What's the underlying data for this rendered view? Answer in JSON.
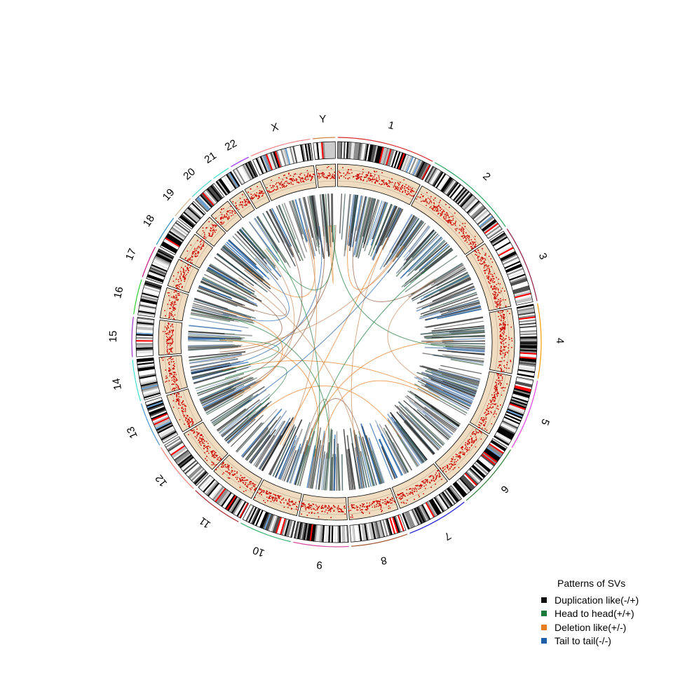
{
  "chart_data": {
    "type": "circos",
    "title": "",
    "chromosomes": [
      {
        "name": "1",
        "length": 249,
        "color": "#d62728"
      },
      {
        "name": "2",
        "length": 243,
        "color": "#2ca25f"
      },
      {
        "name": "3",
        "length": 198,
        "color": "#8c1d40"
      },
      {
        "name": "4",
        "length": 190,
        "color": "#ff9900"
      },
      {
        "name": "5",
        "length": 181,
        "color": "#e040e0"
      },
      {
        "name": "6",
        "length": 171,
        "color": "#2e7d32"
      },
      {
        "name": "7",
        "length": 159,
        "color": "#1f1fd6"
      },
      {
        "name": "8",
        "length": 145,
        "color": "#a0522d"
      },
      {
        "name": "9",
        "length": 141,
        "color": "#d94fa0"
      },
      {
        "name": "10",
        "length": 135,
        "color": "#3cb371"
      },
      {
        "name": "11",
        "length": 135,
        "color": "#a52a2a"
      },
      {
        "name": "12",
        "length": 133,
        "color": "#f08070"
      },
      {
        "name": "13",
        "length": 115,
        "color": "#4f94cd"
      },
      {
        "name": "14",
        "length": 107,
        "color": "#40e0d0"
      },
      {
        "name": "15",
        "length": 102,
        "color": "#9932cc"
      },
      {
        "name": "16",
        "length": 90,
        "color": "#32cd32"
      },
      {
        "name": "17",
        "length": 83,
        "color": "#c71585"
      },
      {
        "name": "18",
        "length": 80,
        "color": "#2f8fbf"
      },
      {
        "name": "19",
        "length": 59,
        "color": "#d2b48c"
      },
      {
        "name": "20",
        "length": 64,
        "color": "#48d1cc"
      },
      {
        "name": "21",
        "length": 47,
        "color": "#40e0d0"
      },
      {
        "name": "22",
        "length": 51,
        "color": "#9b30ff"
      },
      {
        "name": "X",
        "length": 156,
        "color": "#f08080"
      },
      {
        "name": "Y",
        "length": 57,
        "color": "#cd853f"
      }
    ],
    "track_colors": {
      "cnv_panel": "#f0dcc0",
      "cnv_points": "#cc0000",
      "ideogram_highlight": "#ff0000",
      "ideogram_acen": "#6a9fd0"
    },
    "sv_types": [
      {
        "name": "Duplication like(-/+)",
        "color": "#111111"
      },
      {
        "name": "Head to head(+/+)",
        "color": "#1b7a3a"
      },
      {
        "name": "Deletion like(+/-)",
        "color": "#e67e22"
      },
      {
        "name": "Tail to tail(-/-)",
        "color": "#1f5fa6"
      }
    ],
    "legend_title": "Patterns of SVs",
    "legend_position": "bottom-right"
  }
}
